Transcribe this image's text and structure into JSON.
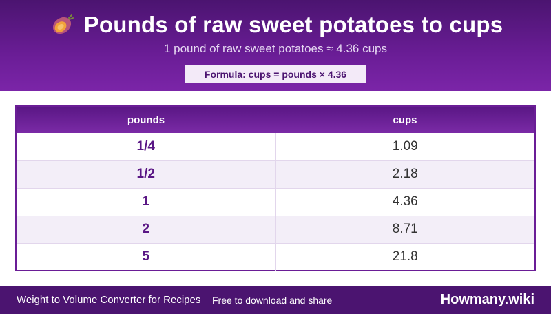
{
  "header": {
    "title": "Pounds of raw sweet potatoes to cups",
    "icon": "sweet-potato-icon",
    "subtitle": "1 pound of raw sweet potatoes ≈ 4.36 cups",
    "formula": "Formula: cups = pounds × 4.36"
  },
  "table": {
    "columns": [
      "pounds",
      "cups"
    ],
    "rows": [
      {
        "pounds": "1/4",
        "cups": "1.09"
      },
      {
        "pounds": "1/2",
        "cups": "2.18"
      },
      {
        "pounds": "1",
        "cups": "4.36"
      },
      {
        "pounds": "2",
        "cups": "8.71"
      },
      {
        "pounds": "5",
        "cups": "21.8"
      }
    ]
  },
  "footer": {
    "left_text": "Weight to Volume Converter for Recipes",
    "mid_text": "Free to download and share",
    "brand": "Howmany.wiki"
  },
  "colors": {
    "brand_purple": "#4b1470",
    "accent_purple": "#6a1d96",
    "row_alt": "#f3eef8"
  }
}
